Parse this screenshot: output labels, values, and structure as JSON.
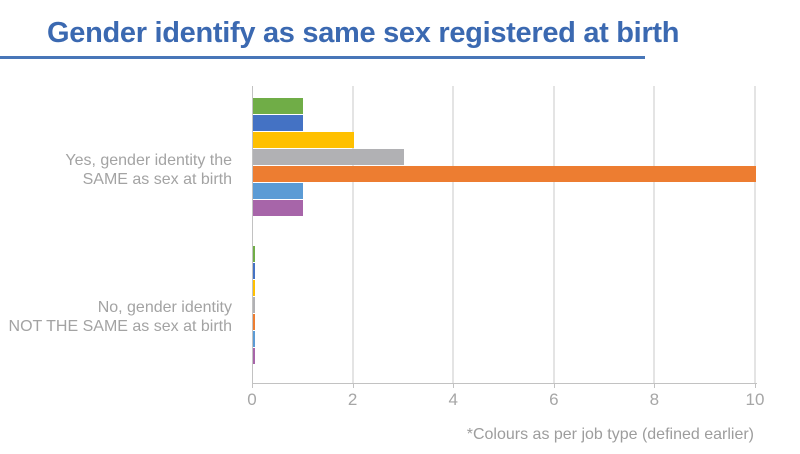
{
  "header": {
    "title": "Gender identify as same sex registered at birth"
  },
  "footnote": {
    "text": "*Colours as per job type (defined earlier)"
  },
  "colors": {
    "title_blue": "#3b69b1",
    "underline_blue": "#4876b8",
    "axis_gray": "#c2c2c2",
    "gridline_gray": "#e4e4e4",
    "category_label_gray": "#a3a3a3",
    "tick_label_gray": "#a6a6a6",
    "footnote_gray": "#9d9d9d"
  },
  "chart_data": {
    "type": "bar",
    "orientation": "horizontal",
    "title": "Gender identify as same sex registered at birth",
    "xlabel": "",
    "ylabel": "",
    "legend": "none",
    "grid": true,
    "categories": [
      "Yes, gender identity the SAME as sex at birth",
      "No, gender identity NOT THE SAME as sex at birth"
    ],
    "category_label_lines": [
      [
        "Yes, gender identity the",
        "SAME as sex at birth"
      ],
      [
        "No, gender identity",
        "NOT THE SAME as sex at birth"
      ]
    ],
    "series": [
      {
        "color_name": "green",
        "color": "#70ad47",
        "values": [
          1,
          0
        ]
      },
      {
        "color_name": "dark-blue",
        "color": "#4472c4",
        "values": [
          1,
          0
        ]
      },
      {
        "color_name": "yellow",
        "color": "#ffc000",
        "values": [
          2,
          0
        ]
      },
      {
        "color_name": "gray",
        "color": "#b1b1b4",
        "values": [
          3,
          0
        ]
      },
      {
        "color_name": "orange",
        "color": "#ed7d31",
        "values": [
          10,
          0
        ]
      },
      {
        "color_name": "light-blue",
        "color": "#5b9bd5",
        "values": [
          1,
          0
        ]
      },
      {
        "color_name": "purple",
        "color": "#a765a9",
        "values": [
          1,
          0
        ]
      }
    ],
    "x_axis": {
      "min": 0,
      "max": 10,
      "ticks": [
        0,
        2,
        4,
        6,
        8,
        10
      ]
    },
    "annotation": "*Colours as per job type (defined earlier)"
  }
}
